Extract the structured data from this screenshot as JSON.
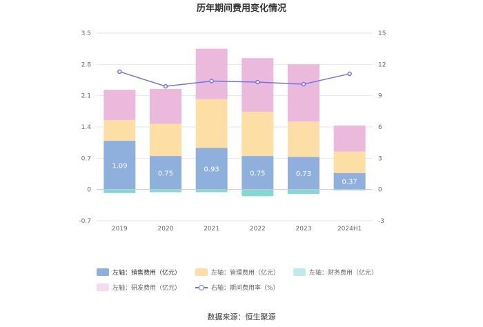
{
  "source": "数据来源：恒生聚源",
  "chart_data": {
    "type": "bar",
    "stacked": true,
    "title": "历年期间费用变化情况",
    "categories": [
      "2019",
      "2020",
      "2021",
      "2022",
      "2023",
      "2024H1"
    ],
    "left_axis": {
      "min": -0.7,
      "max": 3.5,
      "ticks": [
        "3.5",
        "2.8",
        "2.1",
        "1.4",
        "0.7",
        "0",
        "-0.7"
      ]
    },
    "right_axis": {
      "min": -3,
      "max": 15,
      "ticks": [
        "15",
        "12",
        "9",
        "6",
        "3",
        "0",
        "-3"
      ]
    },
    "series": [
      {
        "name": "左轴：销售费用（亿元）",
        "color": "#8fb0dc",
        "values": [
          1.09,
          0.75,
          0.93,
          0.75,
          0.73,
          0.37
        ],
        "labels": [
          "1.09",
          "0.75",
          "0.93",
          "0.75",
          "0.73",
          "0.37"
        ]
      },
      {
        "name": "左轴：管理费用（亿元）",
        "color": "#fddfa6",
        "values": [
          0.46,
          0.72,
          1.09,
          0.99,
          0.79,
          0.48
        ]
      },
      {
        "name": "左轴：财务费用（亿元）",
        "color": "#82d8d3",
        "values": [
          -0.08,
          -0.06,
          -0.06,
          -0.15,
          -0.1,
          -0.02
        ]
      },
      {
        "name": "左轴：研发费用（亿元）",
        "color": "#eab9dc",
        "values": [
          0.68,
          0.78,
          1.13,
          1.2,
          1.28,
          0.58
        ]
      },
      {
        "name": "右轴：期间费用率（%）",
        "color": "#6e73e8",
        "type": "line",
        "axis": "right",
        "values": [
          11.3,
          9.9,
          10.4,
          10.3,
          10.1,
          11.1
        ]
      }
    ]
  }
}
